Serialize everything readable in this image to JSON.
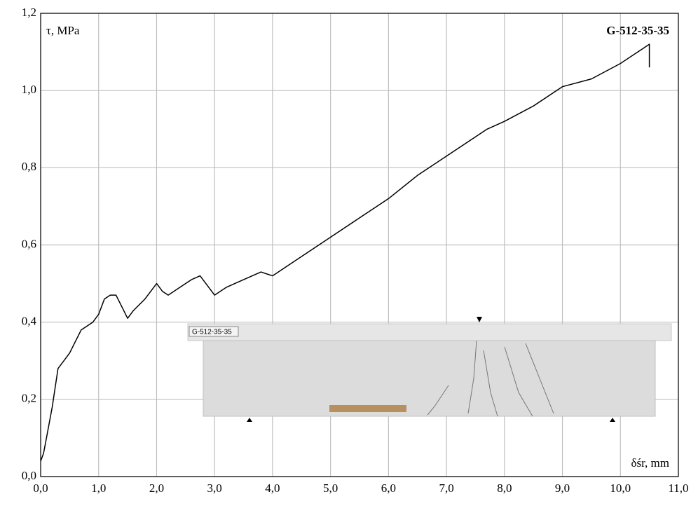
{
  "chart_data": {
    "type": "line",
    "title": "G-512-35-35",
    "y_label": "τ, MPa",
    "x_label": "δśr, mm",
    "inset_label": "G-512-35-35",
    "x": [
      0,
      0.05,
      0.1,
      0.2,
      0.3,
      0.4,
      0.5,
      0.6,
      0.7,
      0.8,
      0.9,
      1.0,
      1.1,
      1.2,
      1.3,
      1.4,
      1.5,
      1.6,
      1.8,
      2.0,
      2.1,
      2.2,
      2.4,
      2.6,
      2.75,
      2.9,
      3.0,
      3.2,
      3.5,
      3.8,
      4.0,
      4.5,
      5.0,
      5.5,
      6.0,
      6.5,
      7.0,
      7.5,
      7.7,
      8.0,
      8.5,
      9.0,
      9.5,
      10.0,
      10.4,
      10.5,
      10.5
    ],
    "series": [
      {
        "name": "G-512-35-35",
        "color": "#000000",
        "values": [
          0.04,
          0.06,
          0.1,
          0.18,
          0.28,
          0.3,
          0.32,
          0.35,
          0.38,
          0.39,
          0.4,
          0.42,
          0.46,
          0.47,
          0.47,
          0.44,
          0.41,
          0.43,
          0.46,
          0.5,
          0.48,
          0.47,
          0.49,
          0.51,
          0.52,
          0.49,
          0.47,
          0.49,
          0.51,
          0.53,
          0.52,
          0.57,
          0.62,
          0.67,
          0.72,
          0.78,
          0.83,
          0.88,
          0.9,
          0.92,
          0.96,
          1.01,
          1.03,
          1.07,
          1.11,
          1.12,
          1.06
        ]
      }
    ],
    "xlim": [
      0,
      11
    ],
    "ylim": [
      0,
      1.2
    ],
    "xticks": [
      {
        "value": 0,
        "label": "0,0"
      },
      {
        "value": 1,
        "label": "1,0"
      },
      {
        "value": 2,
        "label": "2,0"
      },
      {
        "value": 3,
        "label": "3,0"
      },
      {
        "value": 4,
        "label": "4,0"
      },
      {
        "value": 5,
        "label": "5,0"
      },
      {
        "value": 6,
        "label": "6,0"
      },
      {
        "value": 7,
        "label": "7,0"
      },
      {
        "value": 8,
        "label": "8,0"
      },
      {
        "value": 9,
        "label": "9,0"
      },
      {
        "value": 10,
        "label": "10,0"
      },
      {
        "value": 11,
        "label": "11,0"
      }
    ],
    "yticks": [
      {
        "value": 0,
        "label": "0,0"
      },
      {
        "value": 0.2,
        "label": "0,2"
      },
      {
        "value": 0.4,
        "label": "0,4"
      },
      {
        "value": 0.6,
        "label": "0,6"
      },
      {
        "value": 0.8,
        "label": "0,8"
      },
      {
        "value": 1.0,
        "label": "1,0"
      },
      {
        "value": 1.2,
        "label": "1,2"
      }
    ],
    "grid": true
  }
}
